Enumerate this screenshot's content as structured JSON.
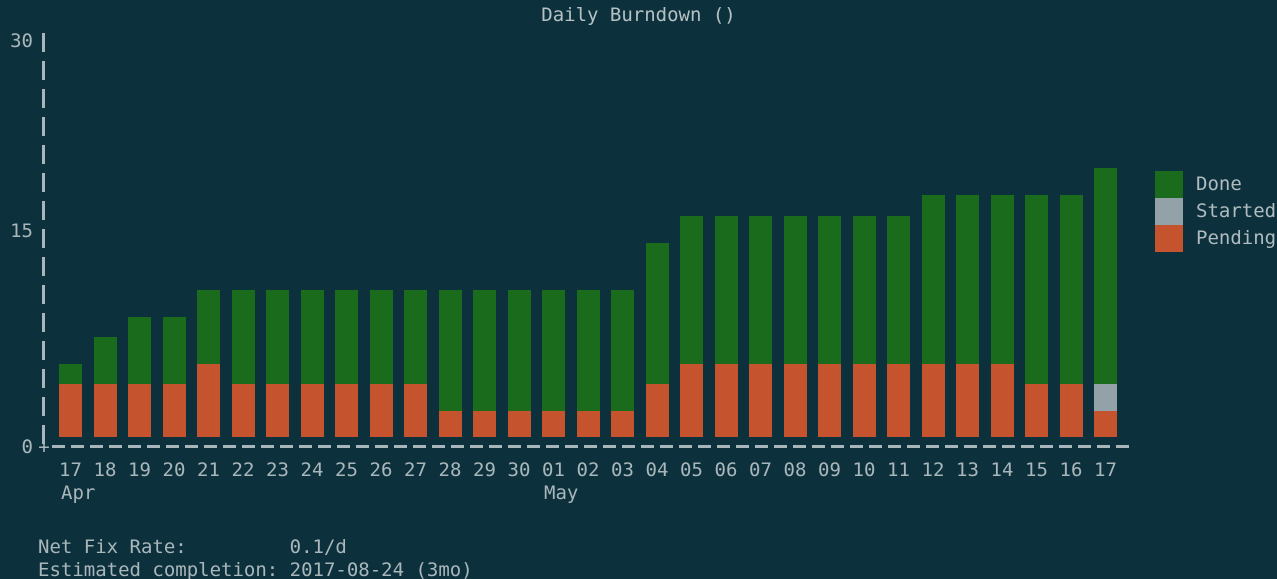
{
  "title": "Daily Burndown ()",
  "colors": {
    "background": "#0c313d",
    "done": "#1b6b1d",
    "started": "#93a1a8",
    "pending": "#c4532e",
    "axis": "#a7b6bb",
    "text": "#a9b6ba"
  },
  "y_axis": {
    "labels": {
      "top": "30",
      "mid": "15",
      "zero": "0"
    },
    "origin_glyph": "+"
  },
  "x_axis": {
    "months": [
      {
        "text": "Apr",
        "index": 0
      },
      {
        "text": "May",
        "index": 14
      }
    ]
  },
  "legend": {
    "position": "right",
    "items": [
      {
        "label": "Done",
        "color": "#1b6b1d"
      },
      {
        "label": "Started",
        "color": "#93a1a8"
      },
      {
        "label": "Pending",
        "color": "#c4532e"
      }
    ]
  },
  "footer": {
    "net_fix_rate_label": "Net Fix Rate:",
    "net_fix_rate_value": "0.1/d",
    "completion_label": "Estimated completion:",
    "completion_value": "2017-08-24 (3mo)"
  },
  "chart_data": {
    "type": "bar",
    "stacked": true,
    "title": "Daily Burndown ()",
    "xlabel": "",
    "ylabel": "",
    "ylim": [
      0,
      30
    ],
    "grid": false,
    "legend_position": "right",
    "categories": [
      "17",
      "18",
      "19",
      "20",
      "21",
      "22",
      "23",
      "24",
      "25",
      "26",
      "27",
      "28",
      "29",
      "30",
      "01",
      "02",
      "03",
      "04",
      "05",
      "06",
      "07",
      "08",
      "09",
      "10",
      "11",
      "12",
      "13",
      "14",
      "15",
      "16",
      "17"
    ],
    "category_months": [
      "Apr",
      "Apr",
      "Apr",
      "Apr",
      "Apr",
      "Apr",
      "Apr",
      "Apr",
      "Apr",
      "Apr",
      "Apr",
      "Apr",
      "Apr",
      "Apr",
      "May",
      "May",
      "May",
      "May",
      "May",
      "May",
      "May",
      "May",
      "May",
      "May",
      "May",
      "May",
      "May",
      "May",
      "May",
      "May",
      "May"
    ],
    "series": [
      {
        "name": "Pending",
        "color": "#c4532e",
        "values": [
          4.5,
          4.5,
          4.5,
          4.5,
          6,
          4.5,
          4.5,
          4.5,
          4.5,
          4.5,
          4.5,
          2.5,
          2.5,
          2.5,
          2.5,
          2.5,
          2.5,
          4.5,
          6,
          6,
          6,
          6,
          6,
          6,
          6,
          6,
          6,
          6,
          4.5,
          4.5,
          2.5
        ]
      },
      {
        "name": "Started",
        "color": "#93a1a8",
        "values": [
          0,
          0,
          0,
          0,
          0,
          0,
          0,
          0,
          0,
          0,
          0,
          0,
          0,
          0,
          0,
          0,
          0,
          0,
          0,
          0,
          0,
          0,
          0,
          0,
          0,
          0,
          0,
          0,
          0,
          0,
          2
        ]
      },
      {
        "name": "Done",
        "color": "#1b6b1d",
        "values": [
          1.5,
          3.5,
          5,
          5,
          5.5,
          7,
          7,
          7,
          7,
          7,
          7,
          9,
          9,
          9,
          9,
          9,
          9,
          10.5,
          11,
          11,
          11,
          11,
          11,
          11,
          11,
          12.5,
          12.5,
          12.5,
          14,
          14,
          16
        ]
      }
    ]
  }
}
